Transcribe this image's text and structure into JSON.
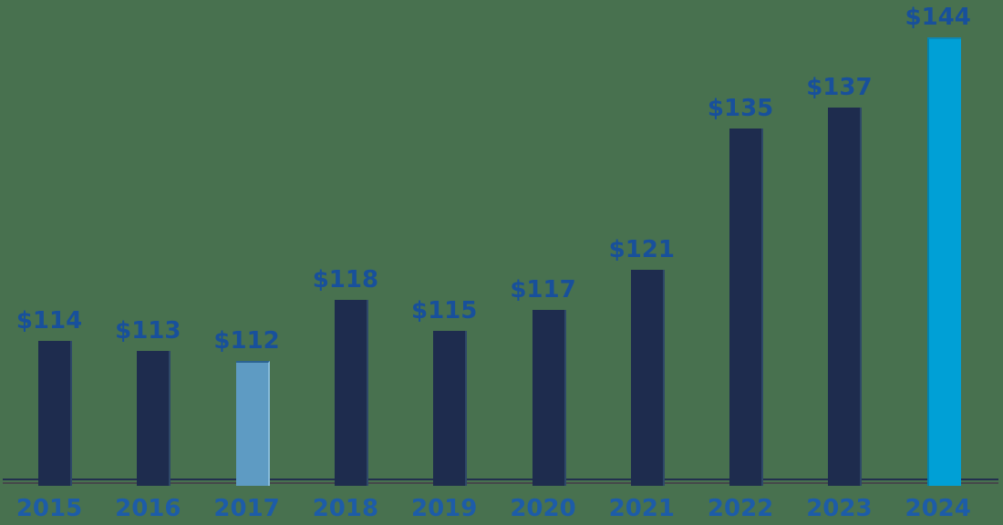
{
  "chart_data": {
    "type": "bar",
    "title": "",
    "xlabel": "",
    "ylabel": "",
    "categories": [
      "2015",
      "2016",
      "2017",
      "2018",
      "2019",
      "2020",
      "2021",
      "2022",
      "2023",
      "2024"
    ],
    "values": [
      114,
      113,
      112,
      118,
      115,
      117,
      121,
      135,
      137,
      144
    ],
    "data_labels": [
      "$114",
      "$113",
      "$112",
      "$118",
      "$115",
      "$117",
      "$121",
      "$135",
      "$137",
      "$144"
    ],
    "ylim": [
      100,
      145
    ],
    "grid": false,
    "legend": false,
    "bar_colors": [
      "#1E2C4E",
      "#1E2C4E",
      "#5E9BC3",
      "#1E2C4E",
      "#1E2C4E",
      "#1E2C4E",
      "#1E2C4E",
      "#1E2C4E",
      "#1E2C4E",
      "#00A0D6"
    ],
    "bar_edges": [
      {
        "right": "#2E4868"
      },
      {
        "right": "#2E4868"
      },
      {
        "top": "#2C6391",
        "right": "#85B9D8"
      },
      {
        "right": "#2E4868"
      },
      {
        "right": "#2E4868"
      },
      {
        "right": "#2E4868"
      },
      {
        "right": "#2E4868"
      },
      {
        "right": "#2E4868"
      },
      {
        "right": "#2E4868"
      },
      {
        "top": "#0E87B4",
        "left": "#0083B0"
      }
    ],
    "colors": {
      "background": "#48714F",
      "data_label_text": "#18509B",
      "category_label_text": "#1D5CA8",
      "axis_line": "#22304E",
      "axis_shadow_line": "#45484A"
    }
  }
}
